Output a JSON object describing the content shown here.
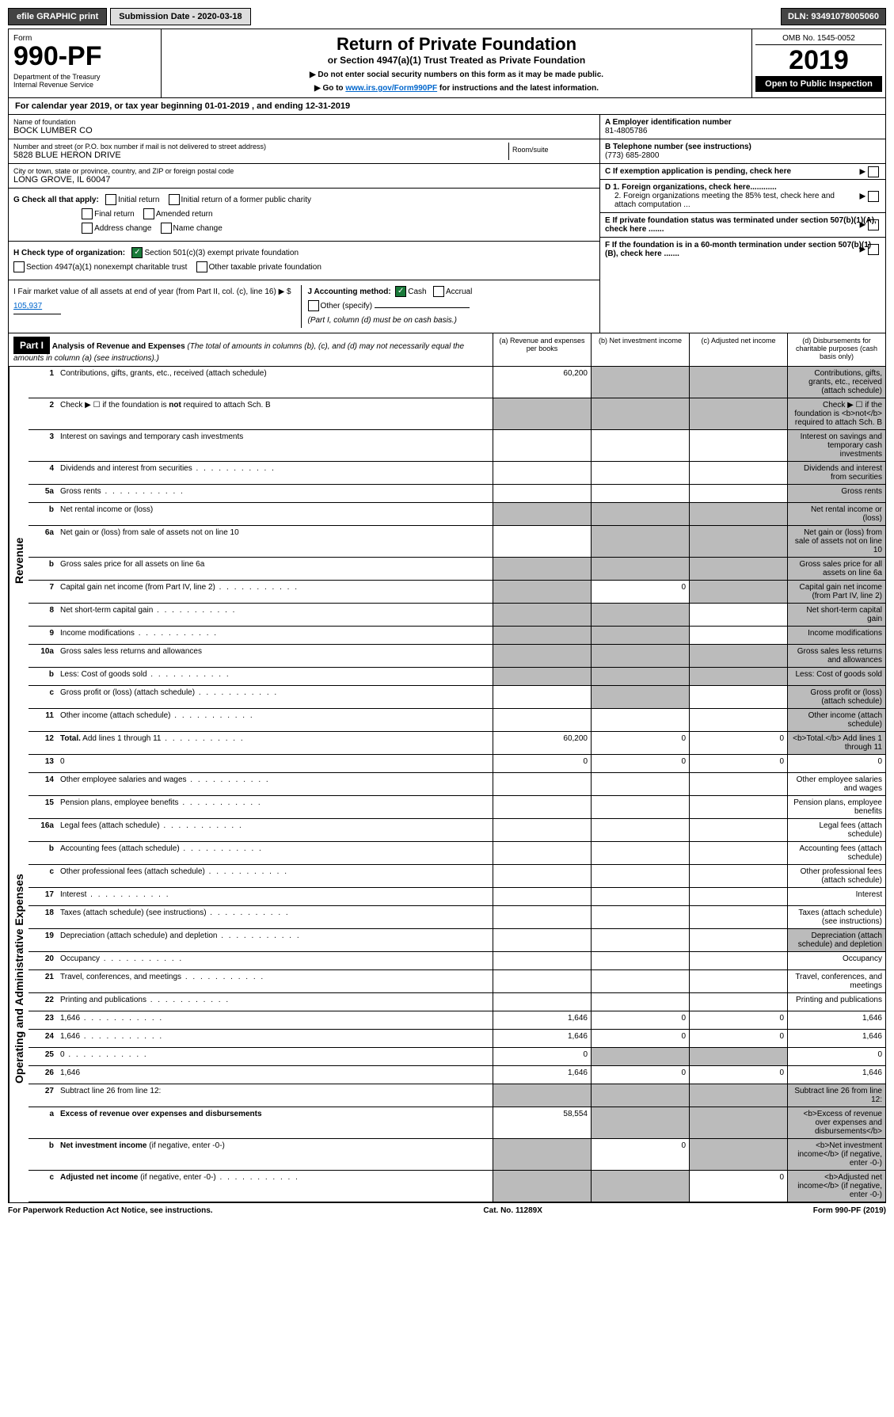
{
  "topbar": {
    "efile": "efile GRAPHIC print",
    "submission": "Submission Date - 2020-03-18",
    "dln": "DLN: 93491078005060"
  },
  "header": {
    "form_label": "Form",
    "form_number": "990-PF",
    "dept": "Department of the Treasury\nInternal Revenue Service",
    "title": "Return of Private Foundation",
    "subtitle": "or Section 4947(a)(1) Trust Treated as Private Foundation",
    "instr1": "▶ Do not enter social security numbers on this form as it may be made public.",
    "instr2_pre": "▶ Go to ",
    "instr2_link": "www.irs.gov/Form990PF",
    "instr2_post": " for instructions and the latest information.",
    "omb": "OMB No. 1545-0052",
    "year": "2019",
    "open": "Open to Public Inspection"
  },
  "calendar": "For calendar year 2019, or tax year beginning 01-01-2019           , and ending 12-31-2019",
  "entity": {
    "name_label": "Name of foundation",
    "name": "BOCK LUMBER CO",
    "addr_label": "Number and street (or P.O. box number if mail is not delivered to street address)",
    "addr": "5828 BLUE HERON DRIVE",
    "room_label": "Room/suite",
    "city_label": "City or town, state or province, country, and ZIP or foreign postal code",
    "city": "LONG GROVE, IL  60047"
  },
  "right_info": {
    "a_label": "A Employer identification number",
    "a_value": "81-4805786",
    "b_label": "B Telephone number (see instructions)",
    "b_value": "(773) 685-2800",
    "c_label": "C If exemption application is pending, check here",
    "d1": "D 1. Foreign organizations, check here............",
    "d2": "2. Foreign organizations meeting the 85% test, check here and attach computation ...",
    "e": "E  If private foundation status was terminated under section 507(b)(1)(A), check here .......",
    "f": "F  If the foundation is in a 60-month termination under section 507(b)(1)(B), check here ......."
  },
  "checks": {
    "g_label": "G Check all that apply:",
    "g_items": [
      "Initial return",
      "Initial return of a former public charity",
      "Final return",
      "Amended return",
      "Address change",
      "Name change"
    ],
    "h_label": "H Check type of organization:",
    "h1": "Section 501(c)(3) exempt private foundation",
    "h2": "Section 4947(a)(1) nonexempt charitable trust",
    "h3": "Other taxable private foundation",
    "i_label": "I Fair market value of all assets at end of year (from Part II, col. (c), line 16) ▶ $",
    "i_value": "105,937",
    "j_label": "J Accounting method:",
    "j_cash": "Cash",
    "j_accrual": "Accrual",
    "j_other": "Other (specify)",
    "j_note": "(Part I, column (d) must be on cash basis.)"
  },
  "part1": {
    "badge": "Part I",
    "title": "Analysis of Revenue and Expenses",
    "note": "(The total of amounts in columns (b), (c), and (d) may not necessarily equal the amounts in column (a) (see instructions).)",
    "col_a": "(a)  Revenue and expenses per books",
    "col_b": "(b)  Net investment income",
    "col_c": "(c)  Adjusted net income",
    "col_d": "(d)  Disbursements for charitable purposes (cash basis only)"
  },
  "sections": {
    "revenue": "Revenue",
    "expenses": "Operating and Administrative Expenses"
  },
  "rows": [
    {
      "n": "1",
      "d": "Contributions, gifts, grants, etc., received (attach schedule)",
      "a": "60,200",
      "grey": [
        "b",
        "c",
        "d"
      ]
    },
    {
      "n": "2",
      "d": "Check ▶ ☐ if the foundation is <b>not</b> required to attach Sch. B",
      "grey": [
        "a",
        "b",
        "c",
        "d"
      ]
    },
    {
      "n": "3",
      "d": "Interest on savings and temporary cash investments",
      "grey": [
        "d"
      ]
    },
    {
      "n": "4",
      "d": "Dividends and interest from securities",
      "dots": true,
      "grey": [
        "d"
      ]
    },
    {
      "n": "5a",
      "d": "Gross rents",
      "dots": true,
      "grey": [
        "d"
      ]
    },
    {
      "n": "b",
      "d": "Net rental income or (loss)",
      "grey": [
        "a",
        "b",
        "c",
        "d"
      ]
    },
    {
      "n": "6a",
      "d": "Net gain or (loss) from sale of assets not on line 10",
      "grey": [
        "b",
        "c",
        "d"
      ]
    },
    {
      "n": "b",
      "d": "Gross sales price for all assets on line 6a",
      "grey": [
        "a",
        "b",
        "c",
        "d"
      ]
    },
    {
      "n": "7",
      "d": "Capital gain net income (from Part IV, line 2)",
      "dots": true,
      "b": "0",
      "grey": [
        "a",
        "c",
        "d"
      ]
    },
    {
      "n": "8",
      "d": "Net short-term capital gain",
      "dots": true,
      "grey": [
        "a",
        "b",
        "d"
      ]
    },
    {
      "n": "9",
      "d": "Income modifications",
      "dots": true,
      "grey": [
        "a",
        "b",
        "d"
      ]
    },
    {
      "n": "10a",
      "d": "Gross sales less returns and allowances",
      "grey": [
        "a",
        "b",
        "c",
        "d"
      ]
    },
    {
      "n": "b",
      "d": "Less: Cost of goods sold",
      "dots": true,
      "grey": [
        "a",
        "b",
        "c",
        "d"
      ]
    },
    {
      "n": "c",
      "d": "Gross profit or (loss) (attach schedule)",
      "dots": true,
      "grey": [
        "b",
        "d"
      ]
    },
    {
      "n": "11",
      "d": "Other income (attach schedule)",
      "dots": true,
      "grey": [
        "d"
      ]
    },
    {
      "n": "12",
      "d": "<b>Total.</b> Add lines 1 through 11",
      "dots": true,
      "a": "60,200",
      "b": "0",
      "c": "0",
      "grey": [
        "d"
      ]
    }
  ],
  "exp_rows": [
    {
      "n": "13",
      "d": "0",
      "a": "0",
      "b": "0",
      "c": "0"
    },
    {
      "n": "14",
      "d": "Other employee salaries and wages",
      "dots": true
    },
    {
      "n": "15",
      "d": "Pension plans, employee benefits",
      "dots": true
    },
    {
      "n": "16a",
      "d": "Legal fees (attach schedule)",
      "dots": true
    },
    {
      "n": "b",
      "d": "Accounting fees (attach schedule)",
      "dots": true
    },
    {
      "n": "c",
      "d": "Other professional fees (attach schedule)",
      "dots": true
    },
    {
      "n": "17",
      "d": "Interest",
      "dots": true
    },
    {
      "n": "18",
      "d": "Taxes (attach schedule) (see instructions)",
      "dots": true
    },
    {
      "n": "19",
      "d": "Depreciation (attach schedule) and depletion",
      "dots": true,
      "grey": [
        "d"
      ]
    },
    {
      "n": "20",
      "d": "Occupancy",
      "dots": true
    },
    {
      "n": "21",
      "d": "Travel, conferences, and meetings",
      "dots": true
    },
    {
      "n": "22",
      "d": "Printing and publications",
      "dots": true
    },
    {
      "n": "23",
      "d": "1,646",
      "dots": true,
      "a": "1,646",
      "b": "0",
      "c": "0"
    },
    {
      "n": "24",
      "d": "1,646",
      "dots": true,
      "a": "1,646",
      "b": "0",
      "c": "0"
    },
    {
      "n": "25",
      "d": "0",
      "dots": true,
      "a": "0",
      "grey": [
        "b",
        "c"
      ]
    },
    {
      "n": "26",
      "d": "1,646",
      "a": "1,646",
      "b": "0",
      "c": "0"
    },
    {
      "n": "27",
      "d": "Subtract line 26 from line 12:",
      "grey": [
        "a",
        "b",
        "c",
        "d"
      ]
    },
    {
      "n": "a",
      "d": "<b>Excess of revenue over expenses and disbursements</b>",
      "a": "58,554",
      "grey": [
        "b",
        "c",
        "d"
      ]
    },
    {
      "n": "b",
      "d": "<b>Net investment income</b> (if negative, enter -0-)",
      "b": "0",
      "grey": [
        "a",
        "c",
        "d"
      ]
    },
    {
      "n": "c",
      "d": "<b>Adjusted net income</b> (if negative, enter -0-)",
      "dots": true,
      "c": "0",
      "grey": [
        "a",
        "b",
        "d"
      ]
    }
  ],
  "footer": {
    "left": "For Paperwork Reduction Act Notice, see instructions.",
    "center": "Cat. No. 11289X",
    "right": "Form 990-PF (2019)"
  }
}
